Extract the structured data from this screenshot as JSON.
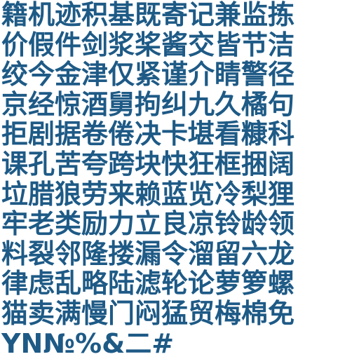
{
  "glyph_color": "#1e5a86",
  "rows": [
    "籍机迹积基既寄记兼监拣",
    "价假件剑浆桨酱交皆节洁",
    "绞今金津仅紧谨介睛警径",
    "京经惊酒舅拘纠九久橘句",
    "拒剧据卷倦决卡堪看糠科",
    "课孔苦夸跨块快狂框捆阔",
    "垃腊狼劳来赖蓝览冷梨狸",
    "牢老类励力立良凉铃龄领",
    "料裂邻隆搂漏令溜留六龙",
    "律虑乱略陆滤轮论萝箩螺",
    "猫卖满慢门闷猛贸梅棉免",
    "YN№%&二#"
  ]
}
